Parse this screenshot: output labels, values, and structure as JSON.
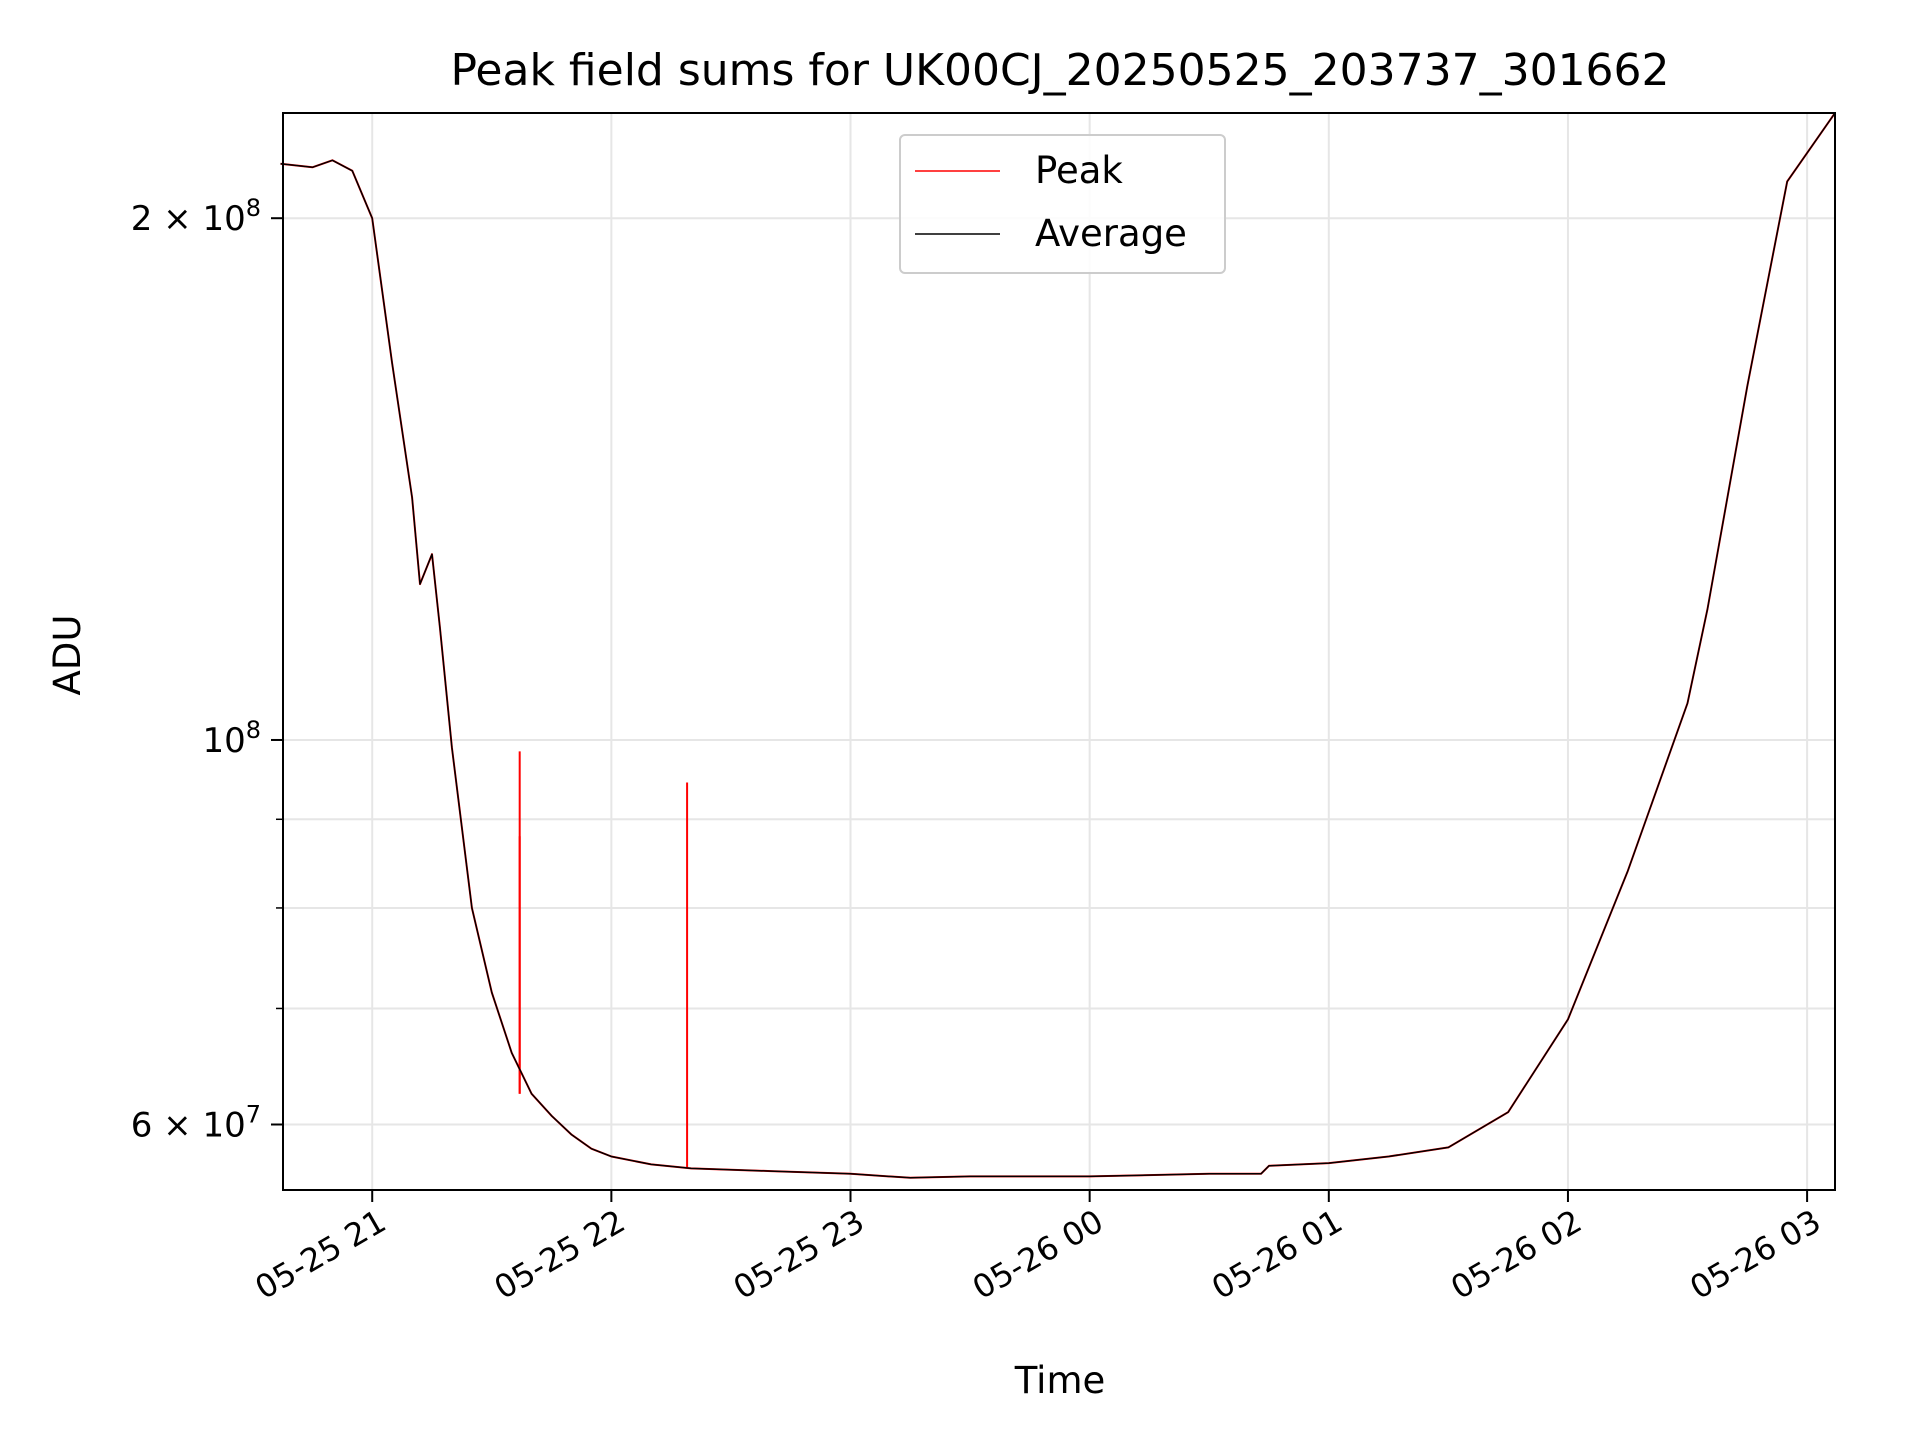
{
  "chart_data": {
    "type": "line",
    "title": "Peak field sums for UK00CJ_20250525_203737_301662",
    "xlabel": "Time",
    "ylabel": "ADU",
    "y_scale": "log",
    "xlim": [
      "2025-05-25 20:37:37",
      "2025-05-26 03:07:00"
    ],
    "ylim": [
      55000000,
      230000000
    ],
    "x_ticks": [
      {
        "value": "2025-05-25 21:00",
        "label": "05-25 21"
      },
      {
        "value": "2025-05-25 22:00",
        "label": "05-25 22"
      },
      {
        "value": "2025-05-25 23:00",
        "label": "05-25 23"
      },
      {
        "value": "2025-05-26 00:00",
        "label": "05-26 00"
      },
      {
        "value": "2025-05-26 01:00",
        "label": "05-26 01"
      },
      {
        "value": "2025-05-26 02:00",
        "label": "05-26 02"
      },
      {
        "value": "2025-05-26 03:00",
        "label": "05-26 03"
      }
    ],
    "y_major_ticks": [
      {
        "value": 60000000,
        "mantissa": "6",
        "exponent": "7"
      },
      {
        "value": 100000000,
        "mantissa": "",
        "exponent": "8"
      },
      {
        "value": 200000000,
        "mantissa": "2",
        "exponent": "8"
      }
    ],
    "y_minor_ticks": [
      70000000,
      80000000,
      90000000
    ],
    "grid": true,
    "legend_position": "top-center",
    "series": [
      {
        "name": "Peak",
        "color": "#ff0000",
        "x": [
          "2025-05-25 20:37",
          "2025-05-25 20:45",
          "2025-05-25 20:50",
          "2025-05-25 20:55",
          "2025-05-25 21:00",
          "2025-05-25 21:05",
          "2025-05-25 21:10",
          "2025-05-25 21:12",
          "2025-05-25 21:15",
          "2025-05-25 21:17",
          "2025-05-25 21:20",
          "2025-05-25 21:25",
          "2025-05-25 21:30",
          "2025-05-25 21:35",
          "2025-05-25 21:40",
          "2025-05-25 21:45",
          "2025-05-25 21:50",
          "2025-05-25 21:55",
          "2025-05-25 22:00",
          "2025-05-25 22:10",
          "2025-05-25 22:20",
          "2025-05-25 22:40",
          "2025-05-25 23:00",
          "2025-05-25 23:15",
          "2025-05-25 23:30",
          "2025-05-26 00:00",
          "2025-05-26 00:30",
          "2025-05-26 00:43",
          "2025-05-26 00:45",
          "2025-05-26 01:00",
          "2025-05-26 01:15",
          "2025-05-26 01:30",
          "2025-05-26 01:45",
          "2025-05-26 02:00",
          "2025-05-26 02:15",
          "2025-05-26 02:30",
          "2025-05-26 02:35",
          "2025-05-26 02:45",
          "2025-05-26 02:55",
          "2025-05-26 03:07"
        ],
        "values": [
          215000000,
          214000000,
          216000000,
          213000000,
          200000000,
          165000000,
          138000000,
          123000000,
          128000000,
          116000000,
          99000000,
          80000000,
          71500000,
          66000000,
          62500000,
          60700000,
          59200000,
          58100000,
          57500000,
          56900000,
          56600000,
          56400000,
          56200000,
          55900000,
          56000000,
          56000000,
          56200000,
          56200000,
          56800000,
          57000000,
          57500000,
          58200000,
          61000000,
          69000000,
          84000000,
          105000000,
          119000000,
          160000000,
          210000000,
          230000000
        ],
        "spikes": [
          {
            "x": "2025-05-25 21:37",
            "value": 98500000
          },
          {
            "x": "2025-05-25 21:37",
            "value": 88000000
          },
          {
            "x": "2025-05-25 22:19",
            "value": 94500000
          }
        ]
      },
      {
        "name": "Average",
        "color": "#000000",
        "x": [
          "2025-05-25 20:37",
          "2025-05-25 20:45",
          "2025-05-25 20:50",
          "2025-05-25 20:55",
          "2025-05-25 21:00",
          "2025-05-25 21:05",
          "2025-05-25 21:10",
          "2025-05-25 21:12",
          "2025-05-25 21:15",
          "2025-05-25 21:17",
          "2025-05-25 21:20",
          "2025-05-25 21:25",
          "2025-05-25 21:30",
          "2025-05-25 21:35",
          "2025-05-25 21:40",
          "2025-05-25 21:45",
          "2025-05-25 21:50",
          "2025-05-25 21:55",
          "2025-05-25 22:00",
          "2025-05-25 22:10",
          "2025-05-25 22:20",
          "2025-05-25 22:40",
          "2025-05-25 23:00",
          "2025-05-25 23:15",
          "2025-05-25 23:30",
          "2025-05-26 00:00",
          "2025-05-26 00:30",
          "2025-05-26 00:43",
          "2025-05-26 00:45",
          "2025-05-26 01:00",
          "2025-05-26 01:15",
          "2025-05-26 01:30",
          "2025-05-26 01:45",
          "2025-05-26 02:00",
          "2025-05-26 02:15",
          "2025-05-26 02:30",
          "2025-05-26 02:35",
          "2025-05-26 02:45",
          "2025-05-26 02:55",
          "2025-05-26 03:07"
        ],
        "values": [
          215000000,
          214000000,
          216000000,
          213000000,
          200000000,
          165000000,
          138000000,
          123000000,
          128000000,
          116000000,
          99000000,
          80000000,
          71500000,
          66000000,
          62500000,
          60700000,
          59200000,
          58100000,
          57500000,
          56900000,
          56600000,
          56400000,
          56200000,
          55900000,
          56000000,
          56000000,
          56200000,
          56200000,
          56800000,
          57000000,
          57500000,
          58200000,
          61000000,
          69000000,
          84000000,
          105000000,
          119000000,
          160000000,
          210000000,
          230000000
        ]
      }
    ]
  }
}
